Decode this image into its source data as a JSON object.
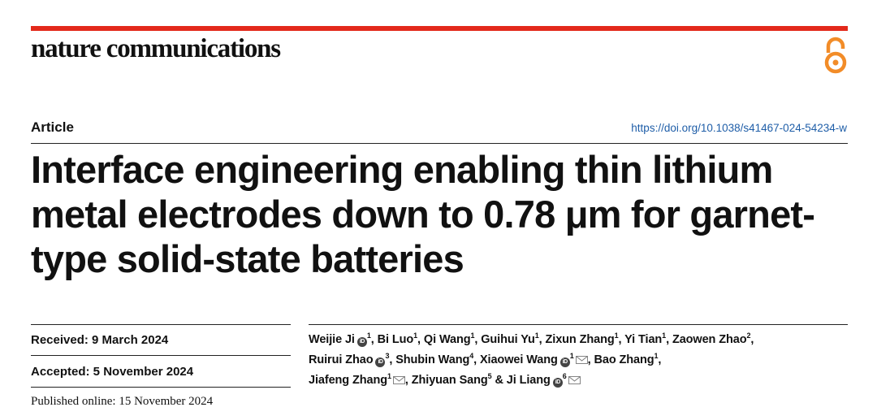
{
  "journal": {
    "name": "nature communications"
  },
  "article": {
    "type": "Article",
    "doi": "https://doi.org/10.1038/s41467-024-54234-w",
    "title_lines": [
      "Interface engineering enabling thin lithium",
      "metal electrodes down to 0.78 μm for garnet-",
      "type solid-state batteries"
    ]
  },
  "dates": {
    "received": "Received: 9 March 2024",
    "accepted": "Accepted: 5 November 2024",
    "published": "Published online: 15 November 2024"
  },
  "authors": [
    {
      "name": "Weijie Ji",
      "affil": "1",
      "orcid": true,
      "corresponding": false,
      "sep": ", "
    },
    {
      "name": "Bi Luo",
      "affil": "1",
      "orcid": false,
      "corresponding": false,
      "sep": ", "
    },
    {
      "name": "Qi Wang",
      "affil": "1",
      "orcid": false,
      "corresponding": false,
      "sep": ", "
    },
    {
      "name": "Guihui Yu",
      "affil": "1",
      "orcid": false,
      "corresponding": false,
      "sep": ", "
    },
    {
      "name": "Zixun Zhang",
      "affil": "1",
      "orcid": false,
      "corresponding": false,
      "sep": ", "
    },
    {
      "name": "Yi Tian",
      "affil": "1",
      "orcid": false,
      "corresponding": false,
      "sep": ", "
    },
    {
      "name": "Zaowen Zhao",
      "affil": "2",
      "orcid": false,
      "corresponding": false,
      "sep": ","
    },
    {
      "name": "Ruirui Zhao",
      "affil": "3",
      "orcid": true,
      "corresponding": false,
      "sep": ", "
    },
    {
      "name": "Shubin Wang",
      "affil": "4",
      "orcid": false,
      "corresponding": false,
      "sep": ", "
    },
    {
      "name": "Xiaowei Wang",
      "affil": "1",
      "orcid": true,
      "corresponding": true,
      "sep": ", "
    },
    {
      "name": "Bao Zhang",
      "affil": "1",
      "orcid": false,
      "corresponding": false,
      "sep": ","
    },
    {
      "name": "Jiafeng Zhang",
      "affil": "1",
      "orcid": false,
      "corresponding": true,
      "sep": ", "
    },
    {
      "name": "Zhiyuan Sang",
      "affil": "5",
      "orcid": false,
      "corresponding": false,
      "sep": " & "
    },
    {
      "name": "Ji Liang",
      "affil": "6",
      "orcid": true,
      "corresponding": true,
      "sep": ""
    }
  ],
  "author_line_breaks_after": [
    6,
    10
  ],
  "colors": {
    "accent_bar": "#e3291b",
    "doi_link": "#1f5ea8",
    "open_access_icon": "#f28c28"
  }
}
